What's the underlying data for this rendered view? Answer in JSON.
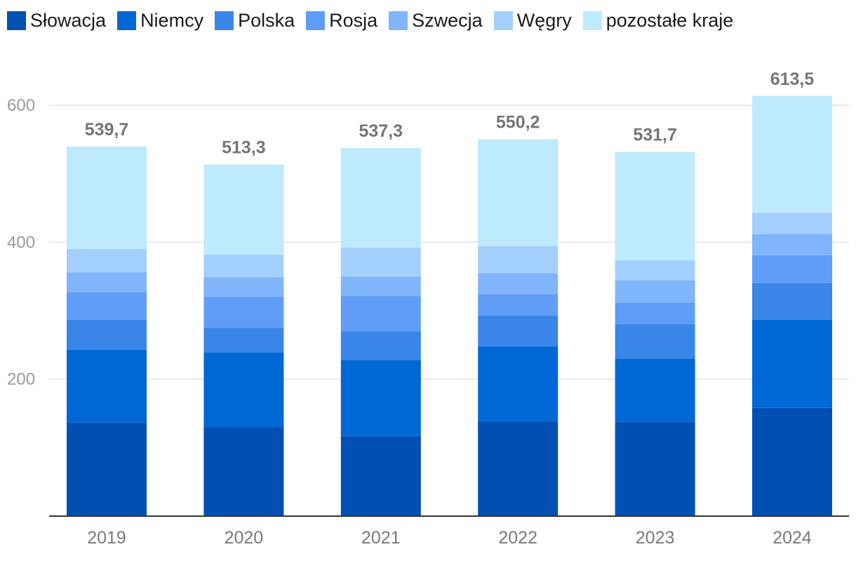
{
  "chart_data": {
    "type": "bar",
    "stacked": true,
    "title": "",
    "xlabel": "",
    "ylabel": "",
    "ylim": [
      0,
      600
    ],
    "yticks": [
      200,
      400,
      600
    ],
    "grid": true,
    "legend_position": "top",
    "categories": [
      "2019",
      "2020",
      "2021",
      "2022",
      "2023",
      "2024"
    ],
    "totals": [
      539.7,
      513.3,
      537.3,
      550.2,
      531.7,
      613.5
    ],
    "total_labels": [
      "539,7",
      "513,3",
      "537,3",
      "550,2",
      "531,7",
      "613,5"
    ],
    "series": [
      {
        "name": "Słowacja",
        "color": "#0050b3",
        "values": [
          137,
          130,
          117,
          139,
          138,
          158
        ]
      },
      {
        "name": "Niemcy",
        "color": "#0068d4",
        "values": [
          106,
          109,
          111,
          109,
          92,
          129
        ]
      },
      {
        "name": "Polska",
        "color": "#3a86e8",
        "values": [
          44,
          36,
          42,
          45,
          50,
          53
        ]
      },
      {
        "name": "Rosja",
        "color": "#609df8",
        "values": [
          40,
          45,
          51,
          31,
          32,
          41
        ]
      },
      {
        "name": "Szwecja",
        "color": "#80b5fb",
        "values": [
          29,
          29,
          29,
          31,
          32,
          31
        ]
      },
      {
        "name": "Węgry",
        "color": "#a3d0fe",
        "values": [
          34,
          33,
          42,
          39,
          30,
          31
        ]
      },
      {
        "name": "pozostałe kraje",
        "color": "#bdeafd",
        "values": [
          149.7,
          131.3,
          145.3,
          156.2,
          157.7,
          170.5
        ]
      }
    ]
  }
}
